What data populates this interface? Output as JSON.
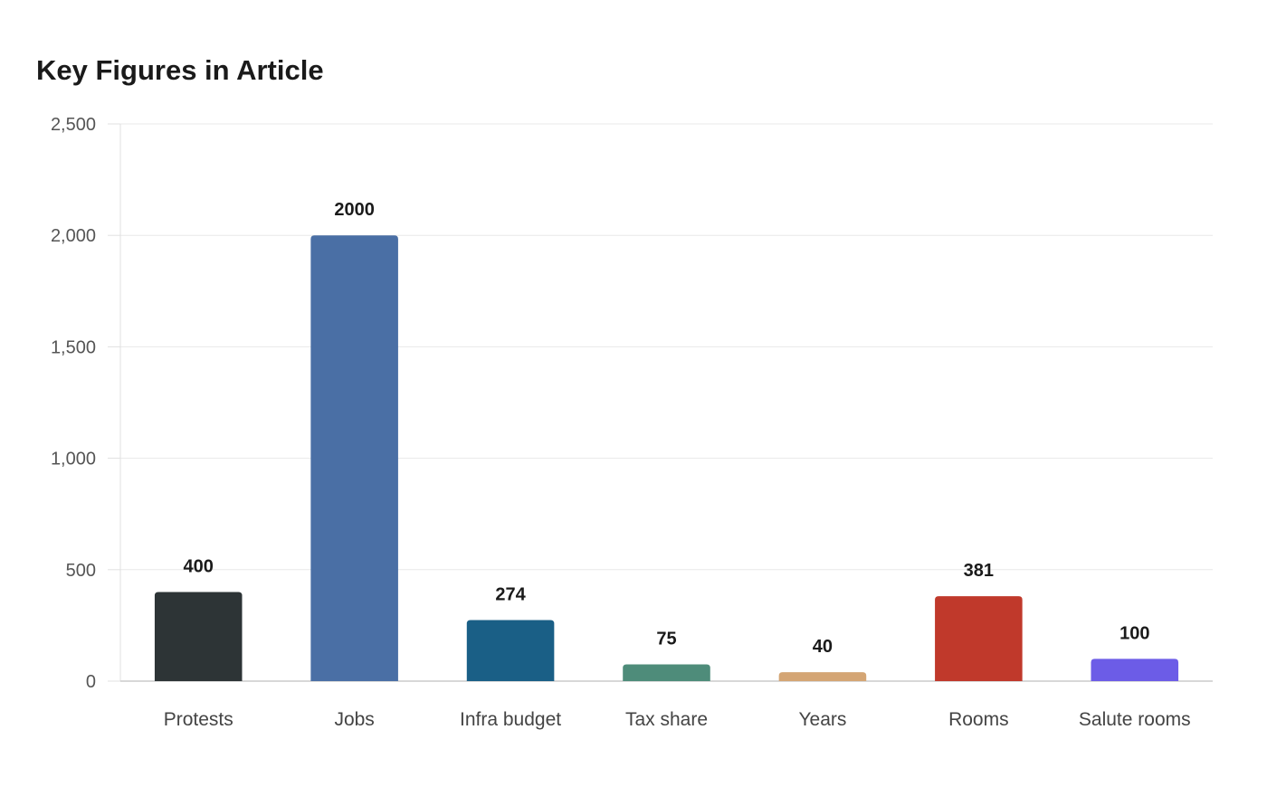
{
  "chart_data": {
    "type": "bar",
    "title": "Key Figures in Article",
    "xlabel": "",
    "ylabel": "",
    "ylim": [
      0,
      2500
    ],
    "yticks": [
      0,
      500,
      1000,
      1500,
      2000,
      2500
    ],
    "ytick_labels": [
      "0",
      "500",
      "1,000",
      "1,500",
      "2,000",
      "2,500"
    ],
    "grid": true,
    "legend": "none",
    "categories": [
      "Protests",
      "Jobs",
      "Infra budget",
      "Tax share",
      "Years",
      "Rooms",
      "Salute rooms"
    ],
    "values": [
      400,
      2000,
      274,
      75,
      40,
      381,
      100
    ],
    "value_labels": [
      "400",
      "2000",
      "274",
      "75",
      "40",
      "381",
      "100"
    ],
    "colors": [
      "#2d3436",
      "#4a6fa5",
      "#1a5f86",
      "#4e8c7a",
      "#d4a574",
      "#c0392b",
      "#6c5ce7"
    ]
  }
}
